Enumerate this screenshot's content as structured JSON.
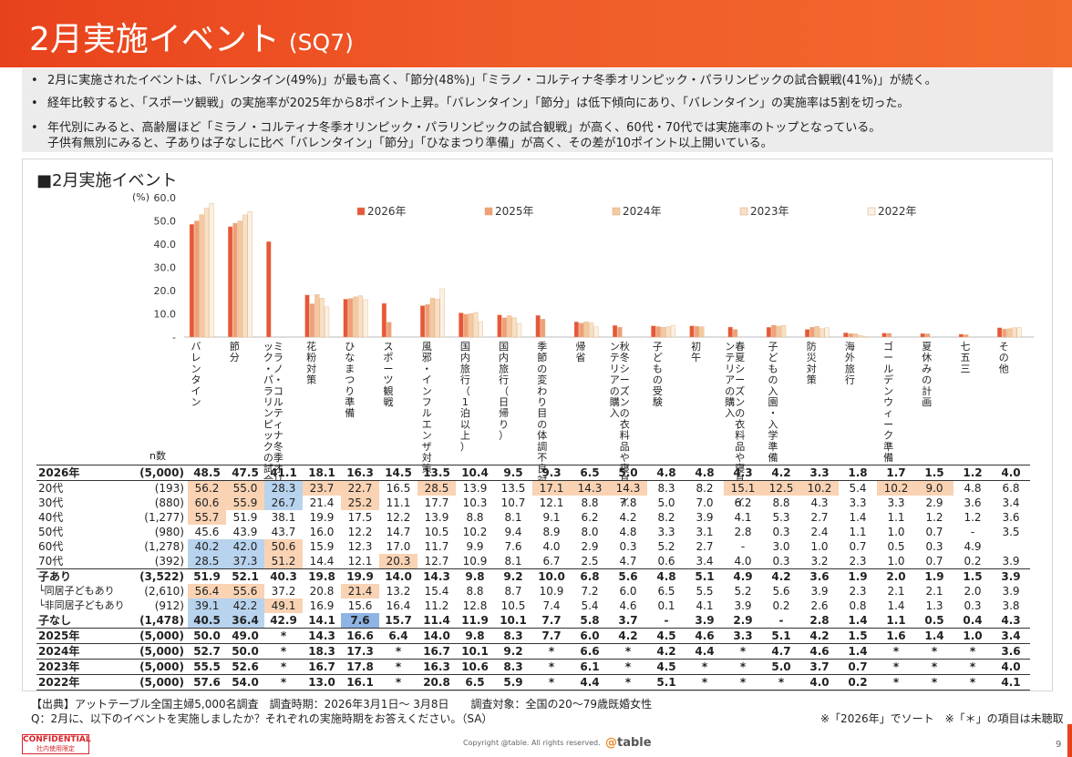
{
  "header": {
    "title": "2月実施イベント",
    "subtitle": "(SQ7)"
  },
  "summary": [
    "2月に実施されたイベントは、「バレンタイン(49%)」が最も高く、「節分(48%)」「ミラノ・コルティナ冬季オリンピック・パラリンピックの試合観戦(41%)」が続く。",
    "経年比較すると、「スポーツ観戦」の実施率が2025年から8ポイント上昇。「バレンタイン」「節分」は低下傾向にあり、「バレンタイン」の実施率は5割を切った。",
    "年代別にみると、高齢層ほど「ミラノ・コルティナ冬季オリンピック・パラリンピックの試合観戦」が高く、60代・70代では実施率のトップとなっている。",
    "子供有無別にみると、子ありは子なしに比べ「バレンタイン」「節分」「ひなまつり準備」が高く、その差が10ポイント以上開いている。"
  ],
  "chart_title": "■2月実施イベント",
  "chart_data": {
    "type": "bar",
    "unit": "(%)",
    "ylim": [
      0,
      60
    ],
    "yticks": [
      "60.0",
      "50.0",
      "40.0",
      "30.0",
      "20.0",
      "10.0",
      "-"
    ],
    "categories": [
      "バレンタイン",
      "節分",
      "ミラノ・コルティナ冬季オリンピック・パラリンピックの試合観戦",
      "花粉対策",
      "ひなまつり準備",
      "スポーツ観戦",
      "風邪・インフルエンザ対策",
      "国内旅行（1泊以上）",
      "国内旅行（日帰り）",
      "季節の変わり目の体調不良対策",
      "帰省",
      "秋冬シーズンの衣料品や寝具・インテリアの購入",
      "子どもの受験",
      "初午",
      "春夏シーズンの衣料品や寝具・インテリアの購入",
      "子どもの入園・入学準備",
      "防災対策",
      "海外旅行",
      "ゴールデンウィーク準備",
      "夏休みの計画",
      "七五三",
      "その他"
    ],
    "series": [
      {
        "name": "2026年",
        "color": "#e8563a",
        "values": [
          48.5,
          47.5,
          41.1,
          18.1,
          16.3,
          14.5,
          13.5,
          10.4,
          9.5,
          9.3,
          6.5,
          5.0,
          4.8,
          4.8,
          4.3,
          4.2,
          3.3,
          1.8,
          1.7,
          1.5,
          1.2,
          4.0
        ]
      },
      {
        "name": "2025年",
        "color": "#f0a078",
        "values": [
          50.0,
          49.0,
          null,
          14.3,
          16.6,
          6.4,
          14.0,
          9.8,
          8.3,
          7.7,
          6.0,
          4.2,
          4.5,
          4.6,
          3.3,
          5.1,
          4.2,
          1.5,
          1.6,
          1.4,
          1.0,
          3.4
        ]
      },
      {
        "name": "2024年",
        "color": "#f5c9a0",
        "values": [
          52.7,
          50.0,
          null,
          18.3,
          17.3,
          null,
          16.7,
          10.1,
          9.2,
          null,
          6.6,
          null,
          4.2,
          4.4,
          null,
          4.7,
          4.6,
          1.4,
          null,
          null,
          null,
          3.6
        ]
      },
      {
        "name": "2023年",
        "color": "#f8e0c4",
        "values": [
          55.5,
          52.6,
          null,
          16.7,
          17.8,
          null,
          16.3,
          10.6,
          8.3,
          null,
          6.1,
          null,
          4.5,
          null,
          null,
          5.0,
          3.7,
          0.7,
          null,
          null,
          null,
          4.0
        ]
      },
      {
        "name": "2022年",
        "color": "#fbf1e2",
        "values": [
          57.6,
          54.0,
          null,
          13.0,
          16.1,
          null,
          20.8,
          6.5,
          5.9,
          null,
          4.4,
          null,
          5.1,
          null,
          null,
          null,
          4.0,
          0.2,
          null,
          null,
          null,
          4.1
        ]
      }
    ]
  },
  "table": {
    "n_header": "n数",
    "rows": [
      {
        "label": "2026年",
        "n": "(5,000)",
        "cells": [
          "48.5",
          "47.5",
          "41.1",
          "18.1",
          "16.3",
          "14.5",
          "13.5",
          "10.4",
          "9.5",
          "9.3",
          "6.5",
          "5.0",
          "4.8",
          "4.8",
          "4.3",
          "4.2",
          "3.3",
          "1.8",
          "1.7",
          "1.5",
          "1.2",
          "4.0"
        ]
      },
      {
        "label": "20代",
        "n": "(193)",
        "cells": [
          "56.2",
          "55.0",
          "28.3",
          "23.7",
          "22.7",
          "16.5",
          "28.5",
          "13.9",
          "13.5",
          "17.1",
          "14.3",
          "14.3",
          "8.3",
          "8.2",
          "15.1",
          "12.5",
          "10.2",
          "5.4",
          "10.2",
          "9.0",
          "4.8",
          "6.8"
        ]
      },
      {
        "label": "30代",
        "n": "(880)",
        "cells": [
          "60.6",
          "55.9",
          "26.7",
          "21.4",
          "25.2",
          "11.1",
          "17.7",
          "10.3",
          "10.7",
          "12.1",
          "8.8",
          "7.8",
          "5.0",
          "7.0",
          "6.2",
          "8.8",
          "4.3",
          "3.3",
          "3.3",
          "2.9",
          "3.6",
          "3.4"
        ]
      },
      {
        "label": "40代",
        "n": "(1,277)",
        "cells": [
          "55.7",
          "51.9",
          "38.1",
          "19.9",
          "17.5",
          "12.2",
          "13.9",
          "8.8",
          "8.1",
          "9.1",
          "6.2",
          "4.2",
          "8.2",
          "3.9",
          "4.1",
          "5.3",
          "2.7",
          "1.4",
          "1.1",
          "1.2",
          "1.2",
          "3.6"
        ]
      },
      {
        "label": "50代",
        "n": "(980)",
        "cells": [
          "45.6",
          "43.9",
          "43.7",
          "16.0",
          "12.2",
          "14.7",
          "10.5",
          "10.2",
          "9.4",
          "8.9",
          "8.0",
          "4.8",
          "3.3",
          "3.1",
          "2.8",
          "0.3",
          "2.4",
          "1.1",
          "1.0",
          "0.7",
          "-",
          "3.5"
        ]
      },
      {
        "label": "60代",
        "n": "(1,278)",
        "cells": [
          "40.2",
          "42.0",
          "50.6",
          "15.9",
          "12.3",
          "17.0",
          "11.7",
          "9.9",
          "7.6",
          "4.0",
          "2.9",
          "0.3",
          "5.2",
          "2.7",
          "-",
          "3.0",
          "1.0",
          "0.7",
          "0.5",
          "0.3",
          "4.9",
          ""
        ]
      },
      {
        "label": "70代",
        "n": "(392)",
        "cells": [
          "28.5",
          "37.3",
          "51.2",
          "14.4",
          "12.1",
          "20.3",
          "12.7",
          "10.9",
          "8.1",
          "6.7",
          "2.5",
          "4.7",
          "0.6",
          "3.4",
          "4.0",
          "0.3",
          "3.2",
          "2.3",
          "1.0",
          "0.7",
          "0.2",
          "3.9"
        ]
      },
      {
        "label": "子あり",
        "n": "(3,522)",
        "cells": [
          "51.9",
          "52.1",
          "40.3",
          "19.8",
          "19.9",
          "14.0",
          "14.3",
          "9.8",
          "9.2",
          "10.0",
          "6.8",
          "5.6",
          "4.8",
          "5.1",
          "4.9",
          "4.2",
          "3.6",
          "1.9",
          "2.0",
          "1.9",
          "1.5",
          "3.9"
        ]
      },
      {
        "label": "└同居子どもあり",
        "n": "(2,610)",
        "cells": [
          "56.4",
          "55.6",
          "37.2",
          "20.8",
          "21.4",
          "13.2",
          "15.4",
          "8.8",
          "8.7",
          "10.9",
          "7.2",
          "6.0",
          "6.5",
          "5.5",
          "5.2",
          "5.6",
          "3.9",
          "2.3",
          "2.1",
          "2.1",
          "2.0",
          "3.9"
        ]
      },
      {
        "label": "└非同居子どもあり",
        "n": "(912)",
        "cells": [
          "39.1",
          "42.2",
          "49.1",
          "16.9",
          "15.6",
          "16.4",
          "11.2",
          "12.8",
          "10.5",
          "7.4",
          "5.4",
          "4.6",
          "0.1",
          "4.1",
          "3.9",
          "0.2",
          "2.6",
          "0.8",
          "1.4",
          "1.3",
          "0.3",
          "3.8"
        ]
      },
      {
        "label": "子なし",
        "n": "(1,478)",
        "cells": [
          "40.5",
          "36.4",
          "42.9",
          "14.1",
          "7.6",
          "15.7",
          "11.4",
          "11.9",
          "10.1",
          "7.7",
          "5.8",
          "3.7",
          "-",
          "3.9",
          "2.9",
          "-",
          "2.8",
          "1.4",
          "1.1",
          "0.5",
          "0.4",
          "4.3"
        ]
      },
      {
        "label": "2025年",
        "n": "(5,000)",
        "cells": [
          "50.0",
          "49.0",
          "*",
          "14.3",
          "16.6",
          "6.4",
          "14.0",
          "9.8",
          "8.3",
          "7.7",
          "6.0",
          "4.2",
          "4.5",
          "4.6",
          "3.3",
          "5.1",
          "4.2",
          "1.5",
          "1.6",
          "1.4",
          "1.0",
          "3.4"
        ]
      },
      {
        "label": "2024年",
        "n": "(5,000)",
        "cells": [
          "52.7",
          "50.0",
          "*",
          "18.3",
          "17.3",
          "*",
          "16.7",
          "10.1",
          "9.2",
          "*",
          "6.6",
          "*",
          "4.2",
          "4.4",
          "*",
          "4.7",
          "4.6",
          "1.4",
          "*",
          "*",
          "*",
          "3.6"
        ]
      },
      {
        "label": "2023年",
        "n": "(5,000)",
        "cells": [
          "55.5",
          "52.6",
          "*",
          "16.7",
          "17.8",
          "*",
          "16.3",
          "10.6",
          "8.3",
          "*",
          "6.1",
          "*",
          "4.5",
          "*",
          "*",
          "5.0",
          "3.7",
          "0.7",
          "*",
          "*",
          "*",
          "4.0"
        ]
      },
      {
        "label": "2022年",
        "n": "(5,000)",
        "cells": [
          "57.6",
          "54.0",
          "*",
          "13.0",
          "16.1",
          "*",
          "20.8",
          "6.5",
          "5.9",
          "*",
          "4.4",
          "*",
          "5.1",
          "*",
          "*",
          "*",
          "4.0",
          "0.2",
          "*",
          "*",
          "*",
          "4.1"
        ]
      }
    ]
  },
  "highlights": {
    "orange": "#f9d3b4",
    "blue": "#b8d3ee",
    "blue_dark": "#8eb4e3",
    "list": [
      [
        1,
        0,
        "o"
      ],
      [
        1,
        1,
        "o"
      ],
      [
        1,
        2,
        "b"
      ],
      [
        1,
        3,
        "o"
      ],
      [
        1,
        4,
        "o"
      ],
      [
        1,
        6,
        "o"
      ],
      [
        1,
        9,
        "o"
      ],
      [
        1,
        10,
        "o"
      ],
      [
        1,
        11,
        "o"
      ],
      [
        1,
        14,
        "o"
      ],
      [
        1,
        15,
        "o"
      ],
      [
        1,
        16,
        "o"
      ],
      [
        1,
        18,
        "o"
      ],
      [
        1,
        19,
        "o"
      ],
      [
        2,
        0,
        "o"
      ],
      [
        2,
        1,
        "o"
      ],
      [
        2,
        2,
        "b"
      ],
      [
        2,
        4,
        "o"
      ],
      [
        3,
        0,
        "o"
      ],
      [
        5,
        0,
        "b"
      ],
      [
        5,
        1,
        "b"
      ],
      [
        5,
        2,
        "o"
      ],
      [
        6,
        0,
        "b"
      ],
      [
        6,
        1,
        "b"
      ],
      [
        6,
        2,
        "o"
      ],
      [
        6,
        5,
        "o"
      ],
      [
        8,
        0,
        "o"
      ],
      [
        8,
        1,
        "o"
      ],
      [
        8,
        4,
        "o"
      ],
      [
        9,
        0,
        "b"
      ],
      [
        9,
        1,
        "b"
      ],
      [
        9,
        2,
        "o"
      ],
      [
        10,
        0,
        "b"
      ],
      [
        10,
        1,
        "b"
      ],
      [
        10,
        4,
        "B"
      ]
    ]
  },
  "footer": {
    "source": "【出典】アットテーブル全国主婦5,000名調査　調査時期：2026年3月1日～ 3月8日　　調査対象：全国の20～79歳既婚女性",
    "question": "Q：2月に、以下のイベントを実施しましたか？それぞれの実施時期をお答えください。（SA）",
    "note": "※「2026年」でソート　※「＊」の項目は未聴取",
    "confidential": "CONFIDENTIAL",
    "confidential_sub": "社内使用限定",
    "copyright": "Copyright @table. All rights reserved.",
    "logo": "table",
    "page": "9"
  }
}
